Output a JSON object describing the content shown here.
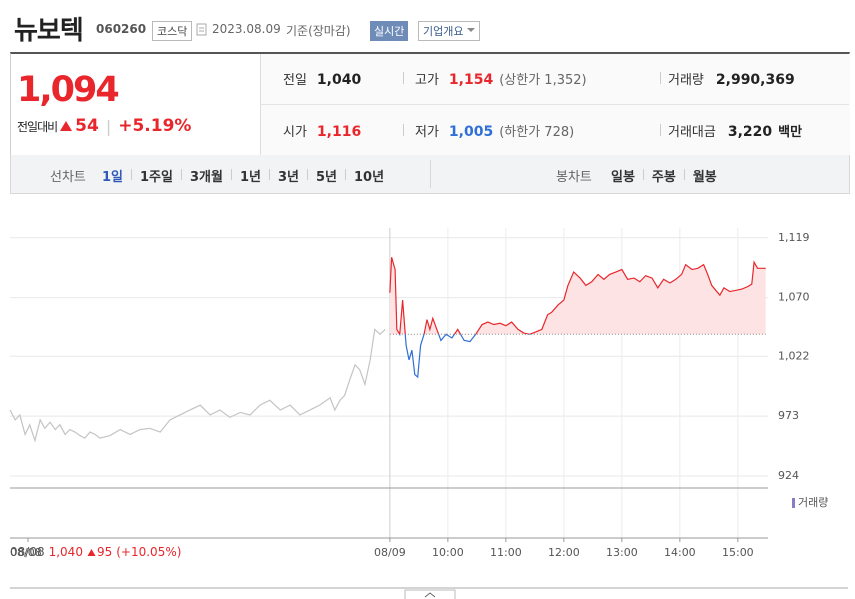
{
  "header": {
    "name": "뉴보텍",
    "code": "060260",
    "market": "코스닥",
    "date": "2023.08.09",
    "basis": "기준(장마감)",
    "realtime": "실시간",
    "company": "기업개요"
  },
  "quote": {
    "price": "1,094",
    "change_label": "전일대비",
    "change": "54",
    "rate": "+5.19%",
    "rows": [
      [
        {
          "label": "전일",
          "value": "1,040"
        },
        {
          "label": "고가",
          "value": "1,154",
          "note": "(상한가 1,352)"
        },
        {
          "label": "거래량",
          "value": "2,990,369"
        }
      ],
      [
        {
          "label": "시가",
          "value": "1,116"
        },
        {
          "label": "저가",
          "value": "1,005",
          "note": "(하한가 728)"
        },
        {
          "label": "거래대금",
          "value": "3,220",
          "unit": "백만"
        }
      ]
    ]
  },
  "tabs": {
    "line_label": "선차트",
    "line": [
      "1일",
      "1주일",
      "3개월",
      "1년",
      "3년",
      "5년",
      "10년"
    ],
    "candle_label": "봉차트",
    "candle": [
      "일봉",
      "주봉",
      "월봉"
    ]
  },
  "chart_data": {
    "type": "line",
    "xlim": [
      2.45,
      15.52
    ],
    "ylim": [
      915,
      1127
    ],
    "yticks": [
      {
        "value": 1119,
        "label": "1,119"
      },
      {
        "value": 1070,
        "label": "1,070"
      },
      {
        "value": 1022,
        "label": "1,022"
      },
      973,
      924
    ],
    "xticks": [
      {
        "value": 2.76,
        "label": "08/08"
      },
      {
        "value": 9,
        "label": "08/09"
      },
      {
        "value": 10,
        "label": "10:00"
      },
      {
        "value": 11,
        "label": "11:00"
      },
      {
        "value": 12,
        "label": "12:00"
      },
      {
        "value": 13,
        "label": "13:00"
      },
      {
        "value": 14,
        "label": "14:00"
      },
      {
        "value": 15,
        "label": "15:00"
      }
    ],
    "grid": true,
    "baseline": 1040,
    "legend": "거래량",
    "series": [
      {
        "color": "#c4c4c4",
        "x": [
          2.45,
          2.54,
          2.62,
          2.71,
          2.79,
          2.88,
          2.97,
          3.05,
          3.14,
          3.23,
          3.31,
          3.4,
          3.48,
          3.57,
          3.66,
          3.74,
          3.83,
          3.92,
          4.0,
          4.17,
          4.35,
          4.52,
          4.69,
          4.86,
          5.04,
          5.21,
          5.38,
          5.55,
          5.73,
          5.9,
          6.07,
          6.24,
          6.42,
          6.59,
          6.76,
          6.93,
          7.11,
          7.28,
          7.45,
          7.62,
          7.79,
          7.97,
          8.05,
          8.14,
          8.22,
          8.31,
          8.4,
          8.48,
          8.57,
          8.66,
          8.74,
          8.83,
          8.92
        ],
        "values": [
          978,
          970,
          974,
          958,
          966,
          953,
          970,
          963,
          968,
          962,
          966,
          958,
          962,
          960,
          957,
          955,
          960,
          958,
          955,
          957,
          962,
          958,
          962,
          963,
          960,
          970,
          974,
          978,
          982,
          974,
          978,
          972,
          976,
          974,
          982,
          986,
          978,
          982,
          974,
          978,
          982,
          988,
          978,
          986,
          990,
          1003,
          1015,
          1011,
          999,
          1019,
          1044,
          1040,
          1044
        ]
      },
      {
        "color": "#e8262b",
        "below_color": "#2f6fd6",
        "fill": "#fde3e3",
        "x": [
          9.0,
          9.03,
          9.09,
          9.12,
          9.17,
          9.22,
          9.28,
          9.33,
          9.38,
          9.43,
          9.48,
          9.53,
          9.59,
          9.64,
          9.69,
          9.74,
          9.81,
          9.88,
          9.97,
          10.07,
          10.17,
          10.28,
          10.38,
          10.48,
          10.59,
          10.69,
          10.79,
          10.9,
          11.0,
          11.1,
          11.21,
          11.31,
          11.41,
          11.52,
          11.62,
          11.72,
          11.79,
          11.9,
          12.0,
          12.07,
          12.17,
          12.28,
          12.38,
          12.48,
          12.59,
          12.69,
          12.79,
          12.9,
          13.0,
          13.1,
          13.21,
          13.31,
          13.41,
          13.52,
          13.62,
          13.72,
          13.83,
          13.93,
          14.03,
          14.1,
          14.21,
          14.31,
          14.41,
          14.48,
          14.55,
          14.62,
          14.69,
          14.76,
          14.86,
          14.97,
          15.07,
          15.17,
          15.24,
          15.28,
          15.34,
          15.48
        ],
        "values": [
          1074,
          1103,
          1093,
          1044,
          1040,
          1068,
          1031,
          1019,
          1027,
          1007,
          1005,
          1031,
          1040,
          1052,
          1044,
          1053,
          1044,
          1035,
          1040,
          1037,
          1044,
          1035,
          1034,
          1040,
          1048,
          1050,
          1048,
          1049,
          1047,
          1050,
          1044,
          1041,
          1040,
          1042,
          1044,
          1056,
          1058,
          1064,
          1068,
          1080,
          1091,
          1086,
          1080,
          1083,
          1089,
          1085,
          1089,
          1091,
          1093,
          1085,
          1086,
          1083,
          1088,
          1086,
          1078,
          1085,
          1082,
          1085,
          1089,
          1097,
          1093,
          1094,
          1097,
          1089,
          1080,
          1076,
          1072,
          1078,
          1075,
          1076,
          1077,
          1079,
          1081,
          1099,
          1094,
          1094
        ]
      }
    ],
    "annotation": {
      "date": "08/08",
      "price": "1,040",
      "change": "95",
      "rate": "(+10.05%)"
    }
  }
}
